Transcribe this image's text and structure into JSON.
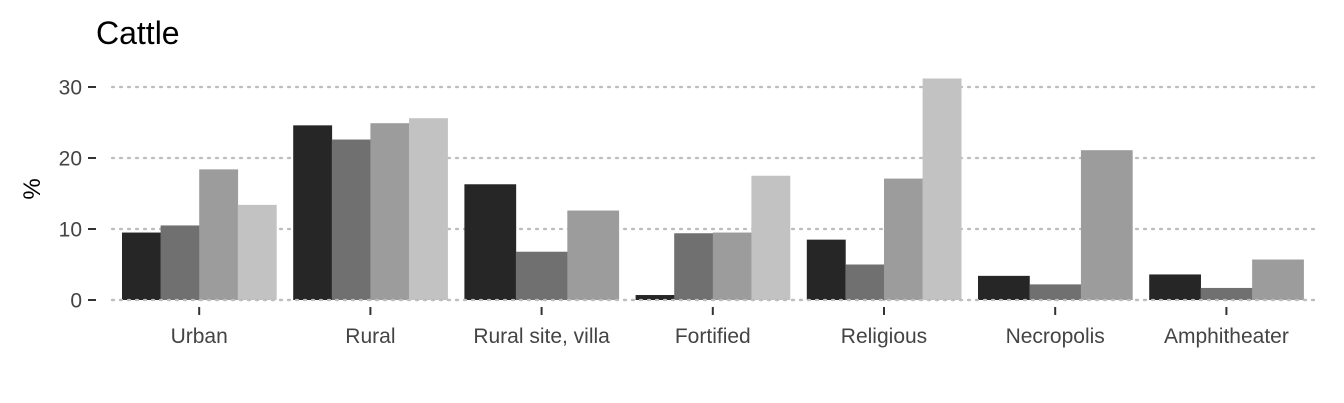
{
  "chart_data": {
    "type": "bar",
    "title": "Cattle",
    "xlabel": "",
    "ylabel": "%",
    "ylim": [
      0,
      32.5
    ],
    "yticks": [
      0,
      10,
      20,
      30
    ],
    "grid": true,
    "legend": "none",
    "categories": [
      "Urban",
      "Rural",
      "Rural site, villa",
      "Fortified",
      "Religious",
      "Necropolis",
      "Amphitheater"
    ],
    "series": [
      {
        "color": "#262626",
        "values": [
          9.5,
          24.6,
          16.3,
          0.7,
          8.5,
          3.4,
          3.6
        ]
      },
      {
        "color": "#707070",
        "values": [
          10.5,
          22.6,
          6.8,
          9.4,
          5.0,
          2.2,
          1.7
        ]
      },
      {
        "color": "#9c9c9c",
        "values": [
          18.4,
          24.9,
          12.6,
          9.5,
          17.1,
          21.1,
          5.7
        ]
      },
      {
        "color": "#c2c2c2",
        "values": [
          13.4,
          25.6,
          null,
          17.5,
          31.2,
          null,
          null
        ]
      }
    ]
  }
}
